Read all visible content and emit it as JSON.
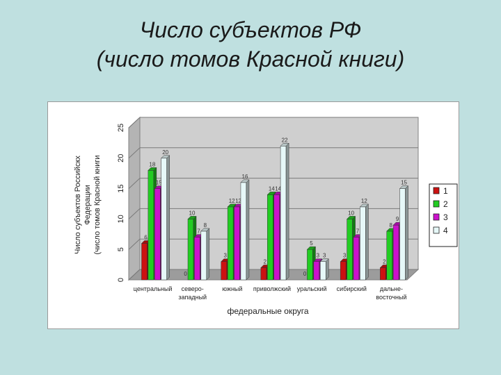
{
  "slide": {
    "title_line1": "Число субъектов РФ",
    "title_line2": "(число томов Красной книги)"
  },
  "chart_data": {
    "type": "bar",
    "categories": [
      [
        "центральный"
      ],
      [
        "северо-",
        "западный"
      ],
      [
        "южный"
      ],
      [
        "приволжский"
      ],
      [
        "уральский"
      ],
      [
        "сибирский"
      ],
      [
        "дальне-",
        "восточный"
      ]
    ],
    "series": [
      {
        "name": "1",
        "color": "#cc1111",
        "values": [
          6,
          0,
          3,
          2,
          0,
          3,
          2
        ]
      },
      {
        "name": "2",
        "color": "#22cc22",
        "values": [
          18,
          10,
          12,
          14,
          5,
          10,
          8
        ]
      },
      {
        "name": "3",
        "color": "#cc11cc",
        "values": [
          15,
          7,
          12,
          14,
          3,
          7,
          9
        ]
      },
      {
        "name": "4",
        "color": "#e6f8f8",
        "values": [
          20,
          8,
          16,
          22,
          3,
          12,
          15
        ]
      }
    ],
    "xlabel": "федеральные округа",
    "ylabel_lines": [
      "Число субъектов Российскх",
      "Федерации",
      "(число томов Красной книги"
    ],
    "ylim": [
      0,
      25
    ],
    "yticks": [
      0,
      5,
      10,
      15,
      20,
      25
    ],
    "grid": true,
    "legend": "right",
    "data_labels": true
  }
}
